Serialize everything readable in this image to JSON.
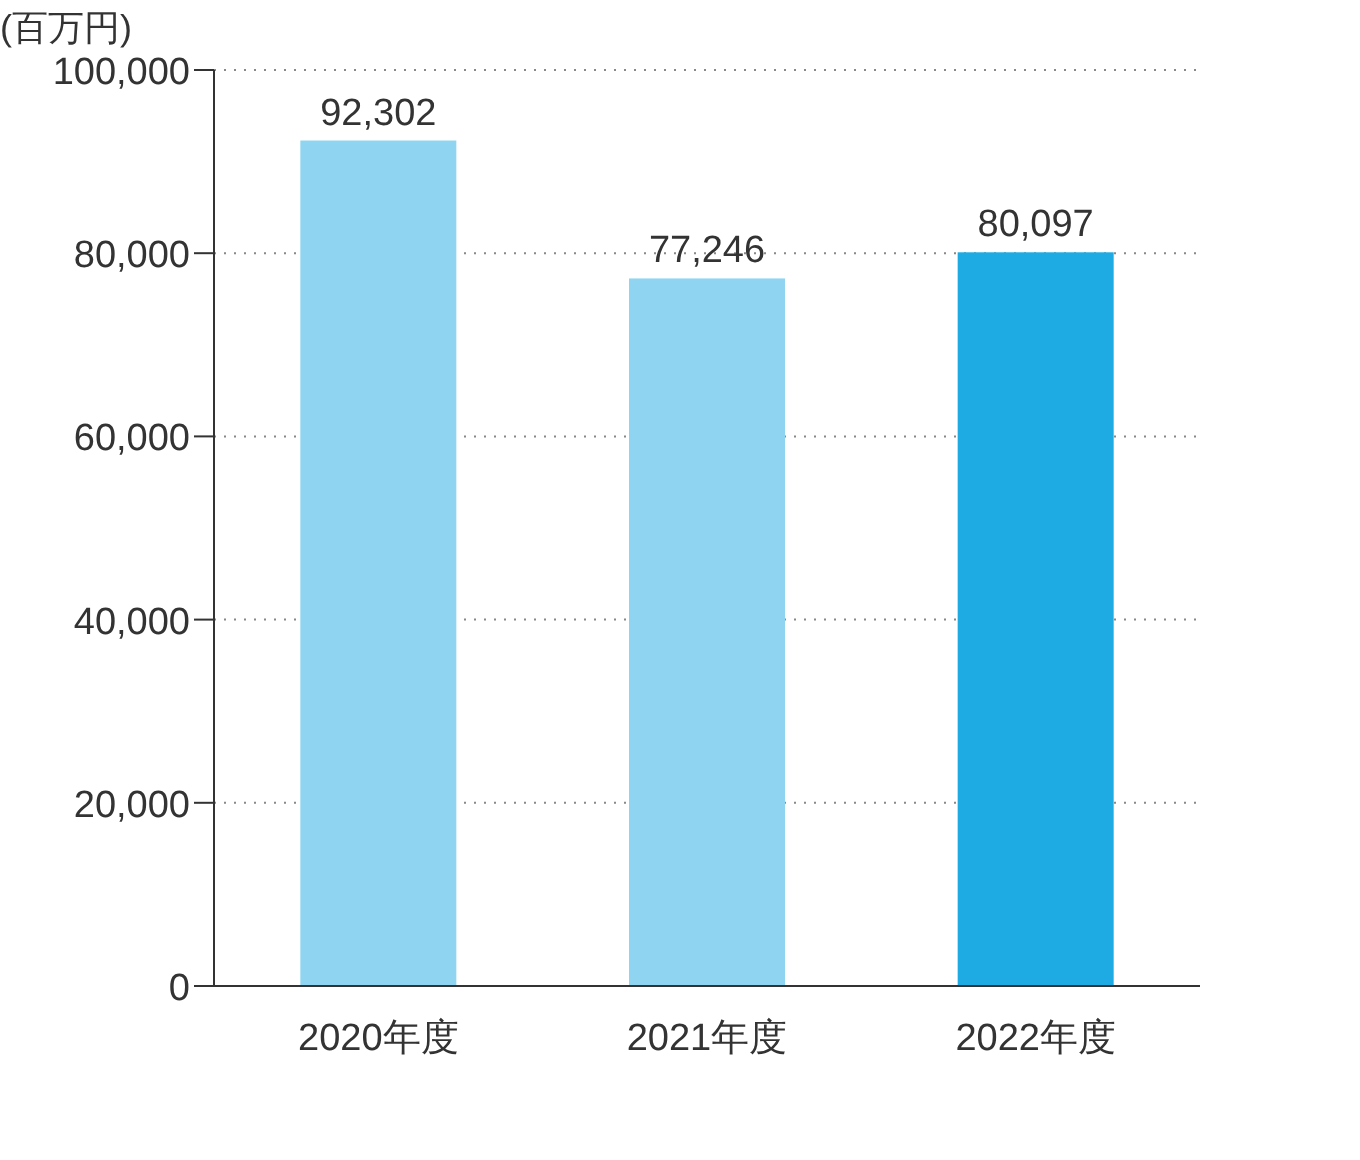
{
  "chart_data": {
    "type": "bar",
    "ylabel": "(百万円)",
    "categories": [
      "2020年度",
      "2021年度",
      "2022年度"
    ],
    "values": [
      92302,
      77246,
      80097
    ],
    "colors": [
      "#8fd5f1",
      "#8fd5f1",
      "#1eaae2"
    ],
    "ylim": [
      0,
      100000
    ],
    "yticks": [
      0,
      {
        "value": 20000,
        "label": "20,000"
      },
      {
        "value": 40000,
        "label": "40,000"
      },
      {
        "value": 60000,
        "label": "60,000"
      },
      {
        "value": 80000,
        "label": "80,000"
      },
      {
        "value": 100000,
        "label": "100,000"
      }
    ],
    "grid": "y",
    "value_labels": [
      "92,302",
      "77,246",
      "80,097"
    ]
  }
}
